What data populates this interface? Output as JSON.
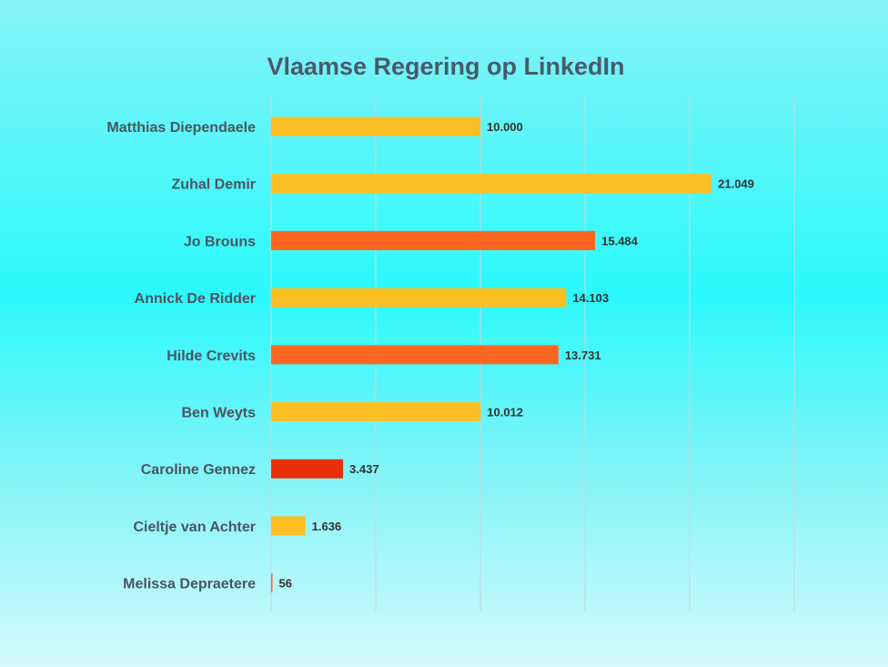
{
  "chart_data": {
    "type": "bar",
    "orientation": "horizontal",
    "title": "Vlaamse Regering op LinkedIn",
    "xlabel": "",
    "ylabel": "",
    "xlim": [
      0,
      25000
    ],
    "grid": true,
    "categories": [
      "Matthias Diependaele",
      "Zuhal Demir",
      "Jo Brouns",
      "Annick De Ridder",
      "Hilde Crevits",
      "Ben Weyts",
      "Caroline Gennez",
      "Cieltje van Achter",
      "Melissa Depraetere"
    ],
    "values": [
      10000,
      21049,
      15484,
      14103,
      13731,
      10012,
      3437,
      1636,
      56
    ],
    "value_labels": [
      "10.000",
      "21.049",
      "15.484",
      "14.103",
      "13.731",
      "10.012",
      "3.437",
      "1.636",
      "56"
    ],
    "colors": [
      "#fbbf24",
      "#fbbf24",
      "#fd6621",
      "#fbbf24",
      "#fd6621",
      "#fbbf24",
      "#e8310c",
      "#fbbf24",
      "#fd6621"
    ]
  }
}
